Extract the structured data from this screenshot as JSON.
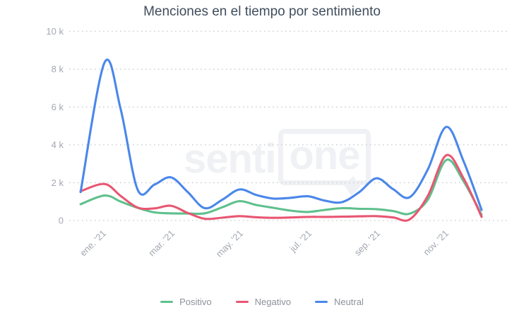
{
  "title": "Menciones en el tiempo por sentimiento",
  "watermark": {
    "prefix": "senti",
    "bubble": "one"
  },
  "chart_data": {
    "type": "line",
    "title": "Menciones en el tiempo por sentimiento",
    "xlabel": "",
    "ylabel": "",
    "grid": "dotted-horizontal",
    "legend_position": "bottom",
    "x_axis": {
      "tick_labels": [
        "ene. '21",
        "mar. '21",
        "may. '21",
        "jul. '21",
        "sep. '21",
        "nov. '21"
      ],
      "tick_months": [
        0,
        2,
        4,
        6,
        8,
        10
      ]
    },
    "y_axis": {
      "min": 0,
      "max": 10000,
      "tick_labels": [
        "10 k",
        "8 k",
        "6 k",
        "4 k",
        "2 k",
        "0"
      ],
      "tick_values": [
        10000,
        8000,
        6000,
        4000,
        2000,
        0
      ]
    },
    "x_unit": "months offset from ene '21 (fractional = weekly data)",
    "series": [
      {
        "name": "Positivo",
        "color": "#5fc08c",
        "points": [
          [
            -0.7,
            860
          ],
          [
            0,
            1320
          ],
          [
            0.47,
            1000
          ],
          [
            0.97,
            670
          ],
          [
            1.46,
            430
          ],
          [
            1.94,
            380
          ],
          [
            2.43,
            370
          ],
          [
            2.93,
            380
          ],
          [
            3.44,
            700
          ],
          [
            3.94,
            1020
          ],
          [
            4.43,
            820
          ],
          [
            4.93,
            670
          ],
          [
            5.44,
            520
          ],
          [
            5.94,
            450
          ],
          [
            6.43,
            560
          ],
          [
            6.93,
            650
          ],
          [
            7.44,
            620
          ],
          [
            7.94,
            600
          ],
          [
            8.43,
            500
          ],
          [
            8.91,
            360
          ],
          [
            9.44,
            1100
          ],
          [
            9.98,
            3200
          ],
          [
            10.49,
            2050
          ],
          [
            11.01,
            300
          ]
        ]
      },
      {
        "name": "Negativo",
        "color": "#e85672",
        "points": [
          [
            -0.7,
            1550
          ],
          [
            0,
            1930
          ],
          [
            0.47,
            1300
          ],
          [
            0.97,
            680
          ],
          [
            1.46,
            640
          ],
          [
            1.94,
            780
          ],
          [
            2.43,
            400
          ],
          [
            2.93,
            90
          ],
          [
            3.44,
            150
          ],
          [
            3.94,
            230
          ],
          [
            4.43,
            170
          ],
          [
            4.93,
            140
          ],
          [
            5.44,
            160
          ],
          [
            5.94,
            190
          ],
          [
            6.43,
            190
          ],
          [
            6.93,
            200
          ],
          [
            7.44,
            220
          ],
          [
            7.94,
            230
          ],
          [
            8.43,
            160
          ],
          [
            8.91,
            60
          ],
          [
            9.44,
            1300
          ],
          [
            9.98,
            3450
          ],
          [
            10.49,
            2200
          ],
          [
            11.01,
            190
          ]
        ]
      },
      {
        "name": "Neutral",
        "color": "#4a87ea",
        "points": [
          [
            -0.7,
            1500
          ],
          [
            0,
            8350
          ],
          [
            0.47,
            5900
          ],
          [
            0.97,
            1620
          ],
          [
            1.46,
            1900
          ],
          [
            1.94,
            2280
          ],
          [
            2.43,
            1500
          ],
          [
            2.93,
            650
          ],
          [
            3.44,
            1100
          ],
          [
            3.94,
            1640
          ],
          [
            4.43,
            1350
          ],
          [
            4.93,
            1160
          ],
          [
            5.44,
            1200
          ],
          [
            5.94,
            1280
          ],
          [
            6.43,
            1050
          ],
          [
            6.93,
            970
          ],
          [
            7.44,
            1500
          ],
          [
            7.94,
            2230
          ],
          [
            8.43,
            1650
          ],
          [
            8.91,
            1230
          ],
          [
            9.44,
            2700
          ],
          [
            9.98,
            4950
          ],
          [
            10.49,
            3100
          ],
          [
            11.01,
            560
          ]
        ]
      }
    ]
  },
  "colors": {
    "title": "#3f4d5c",
    "axis_label": "#a2a7b0",
    "gridline": "#cfd2d8",
    "legend_text": "#8b919b",
    "watermark": "#f0f1f4"
  }
}
